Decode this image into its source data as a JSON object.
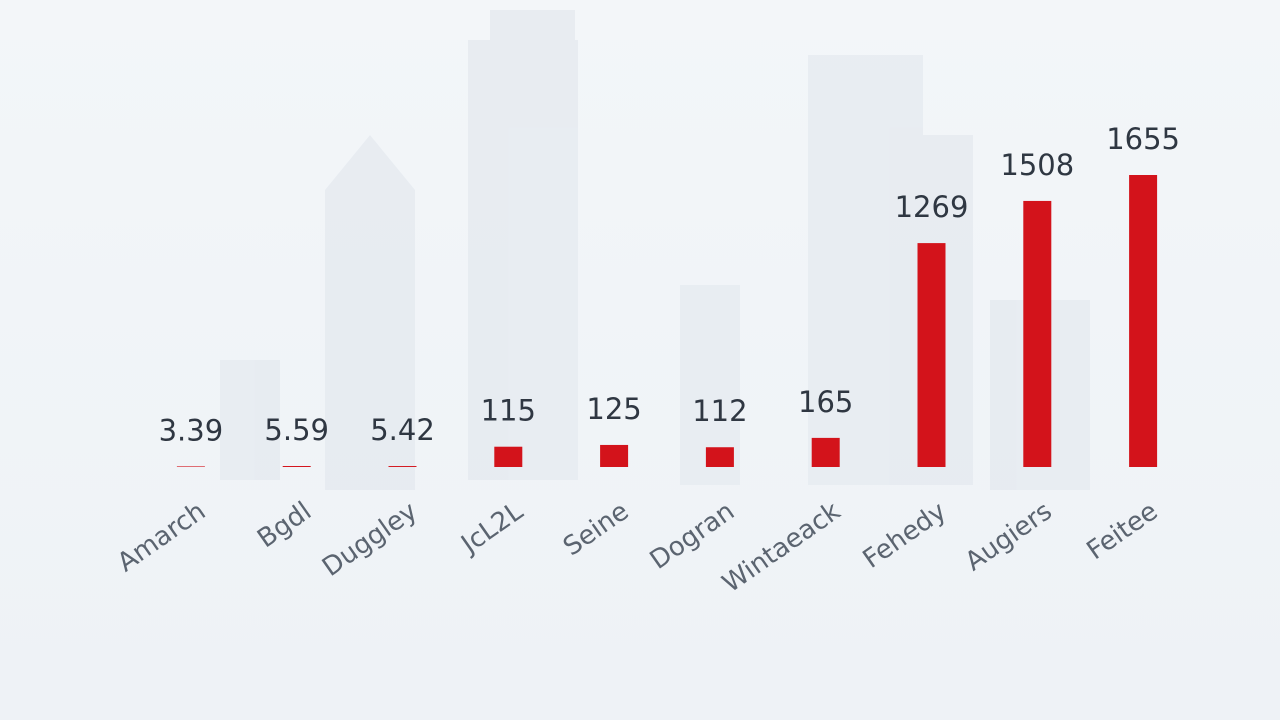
{
  "chart_data": {
    "type": "bar",
    "categories": [
      "Amarch",
      "Bgdl",
      "Duggley",
      "JcL2L",
      "Seine",
      "Dogran",
      "Wintaeack",
      "Fehedy",
      "Augiers",
      "Feitee"
    ],
    "values": [
      3.39,
      5.59,
      5.42,
      115,
      125,
      112,
      165,
      1269,
      1508,
      1655
    ],
    "color": "#d3131b"
  }
}
